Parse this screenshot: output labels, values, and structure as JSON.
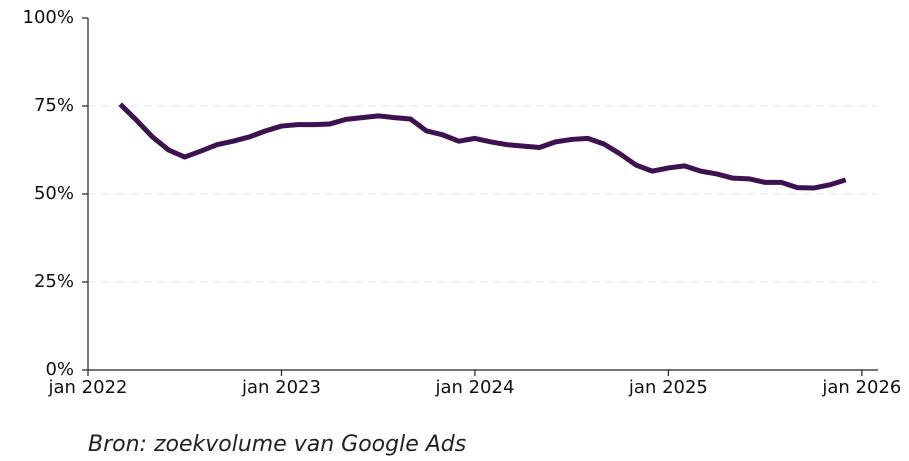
{
  "chart_data": {
    "type": "line",
    "source": "Bron: zoekvolume van Google Ads",
    "x": [
      "2022-03",
      "2022-04",
      "2022-05",
      "2022-06",
      "2022-07",
      "2022-08",
      "2022-09",
      "2022-10",
      "2022-11",
      "2022-12",
      "2023-01",
      "2023-02",
      "2023-03",
      "2023-04",
      "2023-05",
      "2023-06",
      "2023-07",
      "2023-08",
      "2023-09",
      "2023-10",
      "2023-11",
      "2023-12",
      "2024-01",
      "2024-02",
      "2024-03",
      "2024-04",
      "2024-05",
      "2024-06",
      "2024-07",
      "2024-08",
      "2024-09",
      "2024-10",
      "2024-11",
      "2024-12",
      "2025-01",
      "2025-02",
      "2025-03",
      "2025-04",
      "2025-05",
      "2025-06",
      "2025-07",
      "2025-08",
      "2025-09",
      "2025-10",
      "2025-11",
      "2025-12"
    ],
    "series": [
      {
        "color": "#3d1152",
        "values": [
          75.5,
          71,
          66.2,
          62.5,
          60.5,
          62.2,
          64,
          65,
          66.2,
          67.9,
          69.3,
          69.7,
          69.7,
          69.9,
          71.2,
          71.7,
          72.2,
          71.7,
          71.3,
          67.9,
          66.8,
          65,
          65.8,
          64.8,
          64,
          63.6,
          63.2,
          64.8,
          65.5,
          65.8,
          64.2,
          61.4,
          58.2,
          56.5,
          57.4,
          58,
          56.5,
          55.7,
          54.5,
          54.3,
          53.3,
          53.3,
          51.8,
          51.7,
          52.6,
          54
        ]
      }
    ],
    "xlim": [
      "2022-01",
      "2026-02"
    ],
    "xticks": [
      {
        "value": "2022-01",
        "label": "jan 2022"
      },
      {
        "value": "2023-01",
        "label": "jan 2023"
      },
      {
        "value": "2024-01",
        "label": "jan 2024"
      },
      {
        "value": "2025-01",
        "label": "jan 2025"
      },
      {
        "value": "2026-01",
        "label": "jan 2026"
      }
    ],
    "ylim": [
      0,
      100
    ],
    "yticks": [
      {
        "value": 0,
        "label": "0%"
      },
      {
        "value": 25,
        "label": "25%"
      },
      {
        "value": 50,
        "label": "50%"
      },
      {
        "value": 75,
        "label": "75%"
      },
      {
        "value": 100,
        "label": "100%"
      }
    ],
    "grid": true
  }
}
